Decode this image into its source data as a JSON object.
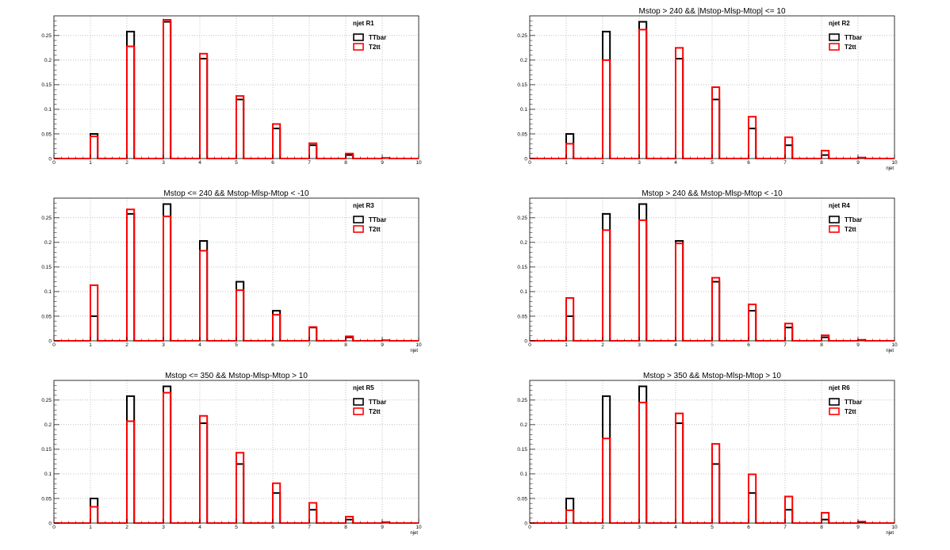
{
  "colors": {
    "TTbar": "#000000",
    "T2tt": "#ff0000",
    "grid": "#9a9a9a",
    "background": "#ffffff"
  },
  "chart_data": [
    {
      "type": "bar",
      "title": "",
      "stat_label": "njet  R1",
      "xlabel": "",
      "ylabel": "",
      "xlim": [
        0,
        10
      ],
      "ylim": [
        0,
        0.29
      ],
      "x_ticks": [
        "0",
        "1",
        "2",
        "3",
        "4",
        "5",
        "6",
        "7",
        "8",
        "9",
        "10"
      ],
      "y_ticks": [
        "0",
        "0.05",
        "0.1",
        "0.15",
        "0.2",
        "0.25"
      ],
      "y_tick_values": [
        0,
        0.05,
        0.1,
        0.15,
        0.2,
        0.25
      ],
      "grid": true,
      "legend_position": "top-right",
      "categories": [
        "0",
        "1",
        "2",
        "3",
        "4",
        "5",
        "6",
        "7",
        "8",
        "9"
      ],
      "series": [
        {
          "name": "TTbar",
          "values": [
            0,
            0.05,
            0.258,
            0.278,
            0.203,
            0.12,
            0.061,
            0.027,
            0.007,
            0.001
          ]
        },
        {
          "name": "T2tt",
          "values": [
            0,
            0.045,
            0.228,
            0.282,
            0.213,
            0.127,
            0.07,
            0.031,
            0.01,
            0.001
          ]
        }
      ]
    },
    {
      "type": "bar",
      "title": "Mstop > 240 && |Mstop-Mlsp-Mtop| <= 10",
      "stat_label": "njet  R2",
      "xlabel": "njet",
      "ylabel": "",
      "xlim": [
        0,
        10
      ],
      "ylim": [
        0,
        0.29
      ],
      "x_ticks": [
        "0",
        "1",
        "2",
        "3",
        "4",
        "5",
        "6",
        "7",
        "8",
        "9",
        "10"
      ],
      "y_ticks": [
        "0",
        "0.05",
        "0.1",
        "0.15",
        "0.2",
        "0.25"
      ],
      "y_tick_values": [
        0,
        0.05,
        0.1,
        0.15,
        0.2,
        0.25
      ],
      "grid": true,
      "legend_position": "top-right",
      "categories": [
        "0",
        "1",
        "2",
        "3",
        "4",
        "5",
        "6",
        "7",
        "8",
        "9"
      ],
      "series": [
        {
          "name": "TTbar",
          "values": [
            0,
            0.05,
            0.258,
            0.278,
            0.203,
            0.12,
            0.061,
            0.027,
            0.007,
            0.001
          ]
        },
        {
          "name": "T2tt",
          "values": [
            0,
            0.03,
            0.2,
            0.262,
            0.225,
            0.145,
            0.085,
            0.043,
            0.016,
            0.002
          ]
        }
      ]
    },
    {
      "type": "bar",
      "title": "Mstop <= 240 && Mstop-Mlsp-Mtop < -10",
      "stat_label": "njet  R3",
      "xlabel": "njet",
      "ylabel": "",
      "xlim": [
        0,
        10
      ],
      "ylim": [
        0,
        0.29
      ],
      "x_ticks": [
        "0",
        "1",
        "2",
        "3",
        "4",
        "5",
        "6",
        "7",
        "8",
        "9",
        "10"
      ],
      "y_ticks": [
        "0",
        "0.05",
        "0.1",
        "0.15",
        "0.2",
        "0.25"
      ],
      "y_tick_values": [
        0,
        0.05,
        0.1,
        0.15,
        0.2,
        0.25
      ],
      "grid": true,
      "legend_position": "top-right",
      "categories": [
        "0",
        "1",
        "2",
        "3",
        "4",
        "5",
        "6",
        "7",
        "8",
        "9"
      ],
      "series": [
        {
          "name": "TTbar",
          "values": [
            0,
            0.05,
            0.258,
            0.278,
            0.203,
            0.12,
            0.061,
            0.027,
            0.007,
            0.001
          ]
        },
        {
          "name": "T2tt",
          "values": [
            0,
            0.113,
            0.267,
            0.253,
            0.183,
            0.103,
            0.053,
            0.028,
            0.009,
            0.001
          ]
        }
      ]
    },
    {
      "type": "bar",
      "title": "Mstop > 240 && Mstop-Mlsp-Mtop < -10",
      "stat_label": "njet  R4",
      "xlabel": "njet",
      "ylabel": "",
      "xlim": [
        0,
        10
      ],
      "ylim": [
        0,
        0.29
      ],
      "x_ticks": [
        "0",
        "1",
        "2",
        "3",
        "4",
        "5",
        "6",
        "7",
        "8",
        "9",
        "10"
      ],
      "y_ticks": [
        "0",
        "0.05",
        "0.1",
        "0.15",
        "0.2",
        "0.25"
      ],
      "y_tick_values": [
        0,
        0.05,
        0.1,
        0.15,
        0.2,
        0.25
      ],
      "grid": true,
      "legend_position": "top-right",
      "categories": [
        "0",
        "1",
        "2",
        "3",
        "4",
        "5",
        "6",
        "7",
        "8",
        "9"
      ],
      "series": [
        {
          "name": "TTbar",
          "values": [
            0,
            0.05,
            0.258,
            0.278,
            0.203,
            0.12,
            0.061,
            0.027,
            0.007,
            0.001
          ]
        },
        {
          "name": "T2tt",
          "values": [
            0,
            0.087,
            0.225,
            0.245,
            0.198,
            0.128,
            0.074,
            0.035,
            0.011,
            0.002
          ]
        }
      ]
    },
    {
      "type": "bar",
      "title": "Mstop <= 350 && Mstop-Mlsp-Mtop > 10",
      "stat_label": "njet  R5",
      "xlabel": "njet",
      "ylabel": "",
      "xlim": [
        0,
        10
      ],
      "ylim": [
        0,
        0.29
      ],
      "x_ticks": [
        "0",
        "1",
        "2",
        "3",
        "4",
        "5",
        "6",
        "7",
        "8",
        "9",
        "10"
      ],
      "y_ticks": [
        "0",
        "0.05",
        "0.1",
        "0.15",
        "0.2",
        "0.25"
      ],
      "y_tick_values": [
        0,
        0.05,
        0.1,
        0.15,
        0.2,
        0.25
      ],
      "grid": true,
      "legend_position": "top-right",
      "categories": [
        "0",
        "1",
        "2",
        "3",
        "4",
        "5",
        "6",
        "7",
        "8",
        "9"
      ],
      "series": [
        {
          "name": "TTbar",
          "values": [
            0,
            0.05,
            0.258,
            0.278,
            0.203,
            0.12,
            0.061,
            0.027,
            0.007,
            0.001
          ]
        },
        {
          "name": "T2tt",
          "values": [
            0,
            0.033,
            0.207,
            0.265,
            0.218,
            0.143,
            0.081,
            0.041,
            0.013,
            0.002
          ]
        }
      ]
    },
    {
      "type": "bar",
      "title": "Mstop > 350 && Mstop-Mlsp-Mtop > 10",
      "stat_label": "njet  R6",
      "xlabel": "njet",
      "ylabel": "",
      "xlim": [
        0,
        10
      ],
      "ylim": [
        0,
        0.29
      ],
      "x_ticks": [
        "0",
        "1",
        "2",
        "3",
        "4",
        "5",
        "6",
        "7",
        "8",
        "9",
        "10"
      ],
      "y_ticks": [
        "0",
        "0.05",
        "0.1",
        "0.15",
        "0.2",
        "0.25"
      ],
      "y_tick_values": [
        0,
        0.05,
        0.1,
        0.15,
        0.2,
        0.25
      ],
      "grid": true,
      "legend_position": "top-right",
      "categories": [
        "0",
        "1",
        "2",
        "3",
        "4",
        "5",
        "6",
        "7",
        "8",
        "9"
      ],
      "series": [
        {
          "name": "TTbar",
          "values": [
            0,
            0.05,
            0.258,
            0.278,
            0.203,
            0.12,
            0.061,
            0.027,
            0.007,
            0.001
          ]
        },
        {
          "name": "T2tt",
          "values": [
            0,
            0.026,
            0.172,
            0.245,
            0.223,
            0.161,
            0.099,
            0.054,
            0.021,
            0.003
          ]
        }
      ]
    }
  ]
}
